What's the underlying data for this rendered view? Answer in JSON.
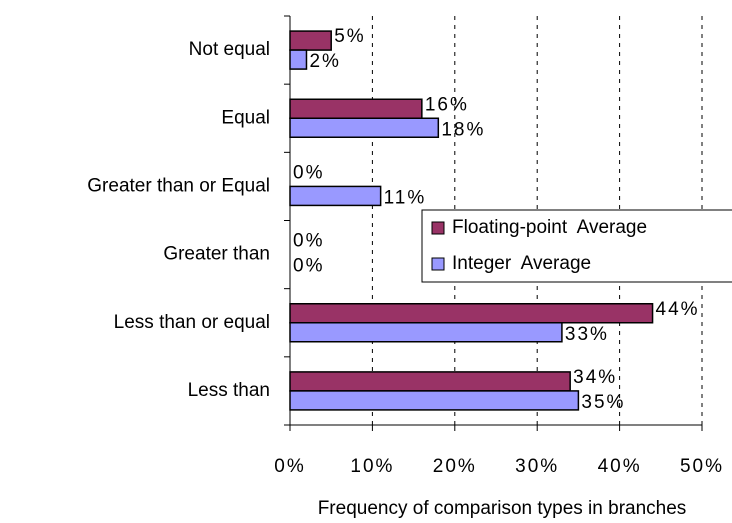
{
  "chart_data": {
    "type": "bar",
    "orientation": "horizontal",
    "xlabel": "Frequency of comparison types in branches",
    "categories": [
      "Not equal",
      "Equal",
      "Greater than or Equal",
      "Greater than",
      "Less than or equal",
      "Less than"
    ],
    "series": [
      {
        "name": "Floating-point  Average",
        "color": "#993366",
        "values": [
          5,
          16,
          0,
          0,
          44,
          34
        ],
        "value_labels": [
          "5%",
          "16%",
          "0%",
          "0%",
          "44%",
          "34%"
        ]
      },
      {
        "name": "Integer  Average",
        "color": "#9999ff",
        "values": [
          2,
          18,
          11,
          0,
          33,
          35
        ],
        "value_labels": [
          "2%",
          "18%",
          "11%",
          "0%",
          "33%",
          "35%"
        ]
      }
    ],
    "xlim": [
      0,
      50
    ],
    "xticks": [
      {
        "value": 0,
        "label": "0%"
      },
      {
        "value": 10,
        "label": "10%"
      },
      {
        "value": 20,
        "label": "20%"
      },
      {
        "value": 30,
        "label": "30%"
      },
      {
        "value": 40,
        "label": "40%"
      },
      {
        "value": 50,
        "label": "50%"
      }
    ],
    "grid": true,
    "legend": "right"
  }
}
